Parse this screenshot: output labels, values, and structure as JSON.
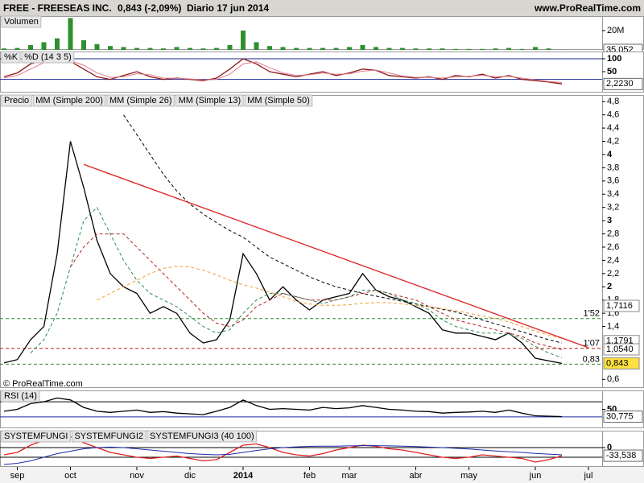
{
  "header": {
    "symbol": "FREE - FREESEAS INC.",
    "quote": "0,843 (-2,09%)",
    "period": "Diario  17 jun 2014",
    "site": "www.ProRealTime.com"
  },
  "chart_data": [
    {
      "type": "bar",
      "title": "Volumen",
      "color": "#2f8f2f",
      "ylim": [
        0,
        35000000
      ],
      "yticks": [
        {
          "value": 20000000,
          "label": "20M"
        }
      ],
      "values": [
        1500000,
        2000000,
        5000000,
        8000000,
        12000000,
        33000000,
        10000000,
        6000000,
        4000000,
        3000000,
        2000000,
        2000000,
        1500000,
        3000000,
        2000000,
        1500000,
        2000000,
        5000000,
        20000000,
        8000000,
        4000000,
        3000000,
        2000000,
        2000000,
        2000000,
        2000000,
        3000000,
        5000000,
        3000000,
        2000000,
        2000000,
        1500000,
        1500000,
        1500000,
        1000000,
        1000000,
        1000000,
        1500000,
        2000000,
        1000000,
        3000000,
        1500000,
        35052
      ],
      "last_label": {
        "value": 35052,
        "label": "35.052",
        "color": "#c00000"
      }
    },
    {
      "type": "line",
      "ylim": [
        -31,
        128
      ],
      "yticks": [
        100,
        50
      ],
      "levels": [
        {
          "value": 100,
          "color": "#1a2a9a"
        },
        {
          "value": 20,
          "color": "#1a2a9a"
        }
      ],
      "series": [
        {
          "name": "%K",
          "color": "#8b1a1a",
          "values": [
            30,
            45,
            80,
            95,
            98,
            90,
            60,
            30,
            20,
            35,
            50,
            30,
            20,
            25,
            20,
            15,
            25,
            60,
            100,
            80,
            50,
            40,
            30,
            40,
            50,
            35,
            45,
            60,
            55,
            35,
            30,
            25,
            30,
            20,
            35,
            30,
            40,
            25,
            35,
            20,
            15,
            10,
            2.223
          ]
        },
        {
          "name": "%D (14 3 5)",
          "color": "#e07a8a",
          "values": [
            25,
            35,
            60,
            85,
            95,
            93,
            75,
            45,
            28,
            30,
            42,
            38,
            25,
            24,
            22,
            18,
            20,
            40,
            80,
            88,
            65,
            45,
            35,
            38,
            45,
            40,
            42,
            52,
            56,
            45,
            33,
            28,
            28,
            25,
            30,
            32,
            36,
            30,
            32,
            25,
            18,
            12,
            8
          ]
        }
      ],
      "last_label": {
        "value": 2.223,
        "label": "2,2230",
        "color": "#8b1a1a"
      }
    },
    {
      "type": "line",
      "ylim": [
        0.47,
        4.9
      ],
      "yticks": [
        {
          "value": 4.8,
          "label": "4,8"
        },
        {
          "value": 4.6,
          "label": "4,6"
        },
        {
          "value": 4.4,
          "label": "4,4"
        },
        {
          "value": 4.2,
          "label": "4,2"
        },
        4,
        {
          "value": 3.8,
          "label": "3,8"
        },
        {
          "value": 3.6,
          "label": "3,6"
        },
        {
          "value": 3.4,
          "label": "3,4"
        },
        {
          "value": 3.2,
          "label": "3,2"
        },
        3,
        {
          "value": 2.8,
          "label": "2,8"
        },
        {
          "value": 2.6,
          "label": "2,6"
        },
        {
          "value": 2.4,
          "label": "2,4"
        },
        {
          "value": 2.2,
          "label": "2,2"
        },
        2,
        {
          "value": 1.8,
          "label": "1,8"
        },
        {
          "value": 1.6,
          "label": "1,6"
        },
        {
          "value": 1.4,
          "label": "1,4"
        },
        {
          "value": 0.6,
          "label": "0,6"
        }
      ],
      "categories": [
        null,
        "sep",
        null,
        null,
        null,
        "oct",
        null,
        null,
        null,
        null,
        "nov",
        null,
        null,
        null,
        "dic",
        null,
        null,
        null,
        "2014",
        null,
        null,
        null,
        null,
        "feb",
        null,
        null,
        "mar",
        null,
        null,
        null,
        null,
        "abr",
        null,
        null,
        null,
        "may",
        null,
        null,
        null,
        null,
        "jun",
        null,
        null,
        null,
        "jul"
      ],
      "series": [
        {
          "name": "Precio",
          "color": "#000000",
          "values": [
            0.85,
            0.9,
            1.2,
            1.4,
            2.5,
            4.2,
            3.5,
            2.7,
            2.2,
            2.0,
            1.9,
            1.6,
            1.7,
            1.6,
            1.3,
            1.15,
            1.2,
            1.5,
            2.5,
            2.2,
            1.8,
            2.0,
            1.8,
            1.65,
            1.8,
            1.85,
            1.9,
            2.2,
            1.95,
            1.85,
            1.8,
            1.7,
            1.6,
            1.35,
            1.3,
            1.3,
            1.25,
            1.2,
            1.3,
            1.15,
            0.92,
            0.88,
            0.843,
            null,
            null
          ]
        },
        {
          "name": "MM (Simple 200)",
          "color": "#000000",
          "dash": true,
          "values": [
            null,
            null,
            null,
            null,
            null,
            null,
            null,
            null,
            null,
            4.6,
            4.3,
            4.0,
            3.7,
            3.45,
            3.25,
            3.1,
            2.97,
            2.85,
            2.75,
            2.6,
            2.45,
            2.35,
            2.25,
            2.15,
            2.07,
            2.0,
            1.95,
            1.9,
            1.86,
            1.82,
            1.78,
            1.74,
            1.7,
            1.66,
            1.62,
            1.56,
            1.5,
            1.44,
            1.38,
            1.32,
            1.26,
            1.2,
            1.15,
            null,
            null
          ]
        },
        {
          "name": "MM (Simple 26)",
          "color": "#b22222",
          "dash": true,
          "values": [
            null,
            null,
            null,
            null,
            null,
            2.3,
            2.6,
            2.8,
            2.8,
            2.8,
            2.6,
            2.4,
            2.2,
            2.0,
            1.8,
            1.6,
            1.45,
            1.4,
            1.5,
            1.7,
            1.8,
            1.9,
            1.85,
            1.8,
            1.8,
            1.8,
            1.85,
            1.9,
            1.95,
            1.9,
            1.85,
            1.8,
            1.7,
            1.6,
            1.5,
            1.45,
            1.4,
            1.35,
            1.3,
            1.25,
            1.15,
            1.1,
            1.05,
            null,
            null
          ]
        },
        {
          "name": "MM (Simple 13)",
          "color": "#2e8b57",
          "dash": true,
          "values": [
            null,
            null,
            1.0,
            1.2,
            1.6,
            2.3,
            3.0,
            3.2,
            2.8,
            2.4,
            2.1,
            1.9,
            1.8,
            1.7,
            1.55,
            1.4,
            1.3,
            1.35,
            1.6,
            1.8,
            1.9,
            1.9,
            1.85,
            1.8,
            1.75,
            1.8,
            1.85,
            1.95,
            1.95,
            1.9,
            1.8,
            1.75,
            1.65,
            1.5,
            1.4,
            1.35,
            1.3,
            1.3,
            1.28,
            1.22,
            1.1,
            1.0,
            0.93,
            null,
            null
          ]
        },
        {
          "name": "MM (Simple 50)",
          "color": "#f0a030",
          "dash": true,
          "values": [
            null,
            null,
            null,
            null,
            null,
            null,
            null,
            1.8,
            1.9,
            2.0,
            2.1,
            2.2,
            2.28,
            2.31,
            2.3,
            2.25,
            2.18,
            2.1,
            2.03,
            1.98,
            1.92,
            1.85,
            1.78,
            1.74,
            1.72,
            1.72,
            1.73,
            1.75,
            1.76,
            1.76,
            1.74,
            1.72,
            1.7,
            1.67,
            1.64,
            1.6,
            1.56,
            1.52,
            1.47,
            1.4,
            1.33,
            1.27,
            1.22,
            null,
            null
          ]
        }
      ],
      "trendline": {
        "x": [
          6,
          44
        ],
        "values": [
          3.85,
          1.08
        ],
        "color": "#e02020"
      },
      "levels": [
        {
          "value": 1.52,
          "label": "1'52",
          "color": "#2e8b2e",
          "dash": true
        },
        {
          "value": 1.07,
          "label": "1'07",
          "color": "#c02020",
          "dash": true
        },
        {
          "value": 0.83,
          "label": "0,83",
          "color": "#2e8b2e",
          "dash": true
        }
      ],
      "price_labels": [
        {
          "value": 1.7116,
          "label": "1,7116",
          "color": "#000000",
          "fill": "#ffffff"
        },
        {
          "value": 1.1791,
          "label": "1,1791",
          "color": "#e08000",
          "fill": "#ffffff"
        },
        {
          "value": 1.054,
          "label": "1,0540",
          "color": "#c02020",
          "fill": "#ffffff"
        },
        {
          "value": 0.843,
          "label": "0,843",
          "color": "#000000",
          "fill": "#ffe040"
        }
      ],
      "note": "© ProRealTime.com"
    },
    {
      "type": "line",
      "ylim": [
        0,
        100
      ],
      "yticks": [
        50
      ],
      "levels": [
        {
          "value": 70,
          "color": "#000000"
        },
        {
          "value": 30,
          "color": "#1a2a9a"
        }
      ],
      "series": [
        {
          "name": "RSI (14)",
          "color": "#000000",
          "values": [
            45,
            50,
            65,
            70,
            80,
            75,
            55,
            45,
            42,
            45,
            48,
            42,
            44,
            40,
            38,
            36,
            45,
            55,
            75,
            60,
            50,
            52,
            50,
            48,
            55,
            52,
            54,
            60,
            55,
            50,
            48,
            45,
            44,
            40,
            42,
            43,
            45,
            42,
            48,
            40,
            33,
            32,
            30.775
          ]
        }
      ],
      "last_label": {
        "value": 30.775,
        "label": "30,775",
        "color": "#000000"
      }
    },
    {
      "type": "line",
      "title": "SYSTEMFUNGI",
      "ylim": [
        -80,
        70
      ],
      "yticks": [
        0
      ],
      "levels": [
        {
          "value": 0,
          "color": "#000000"
        },
        {
          "value": -40,
          "color": "#000000"
        }
      ],
      "series": [
        {
          "name": "SYSTEMFUNGI2",
          "color": "#e02020",
          "values": [
            -30,
            -20,
            10,
            30,
            40,
            45,
            20,
            0,
            -20,
            -30,
            -40,
            -45,
            -40,
            -35,
            -45,
            -55,
            -50,
            -20,
            10,
            15,
            0,
            -20,
            -30,
            -35,
            -25,
            -10,
            0,
            10,
            5,
            -5,
            -10,
            -20,
            -30,
            -40,
            -45,
            -40,
            -30,
            -35,
            -40,
            -45,
            -60,
            -50,
            -33.538
          ]
        },
        {
          "name": "SYSTEMFUNGI3 (40 100)",
          "color": "#1a2aaa",
          "values": [
            -70,
            -65,
            -55,
            -40,
            -25,
            -15,
            -5,
            0,
            2,
            0,
            -5,
            -10,
            -15,
            -20,
            -25,
            -28,
            -30,
            -28,
            -20,
            -12,
            -5,
            0,
            3,
            5,
            6,
            6,
            7,
            8,
            8,
            7,
            6,
            4,
            2,
            0,
            -3,
            -6,
            -10,
            -14,
            -17,
            -20,
            -24,
            -27,
            -30
          ]
        }
      ],
      "last_label": {
        "value": -33.538,
        "label": "-33,538",
        "color": "#c02020"
      }
    }
  ]
}
